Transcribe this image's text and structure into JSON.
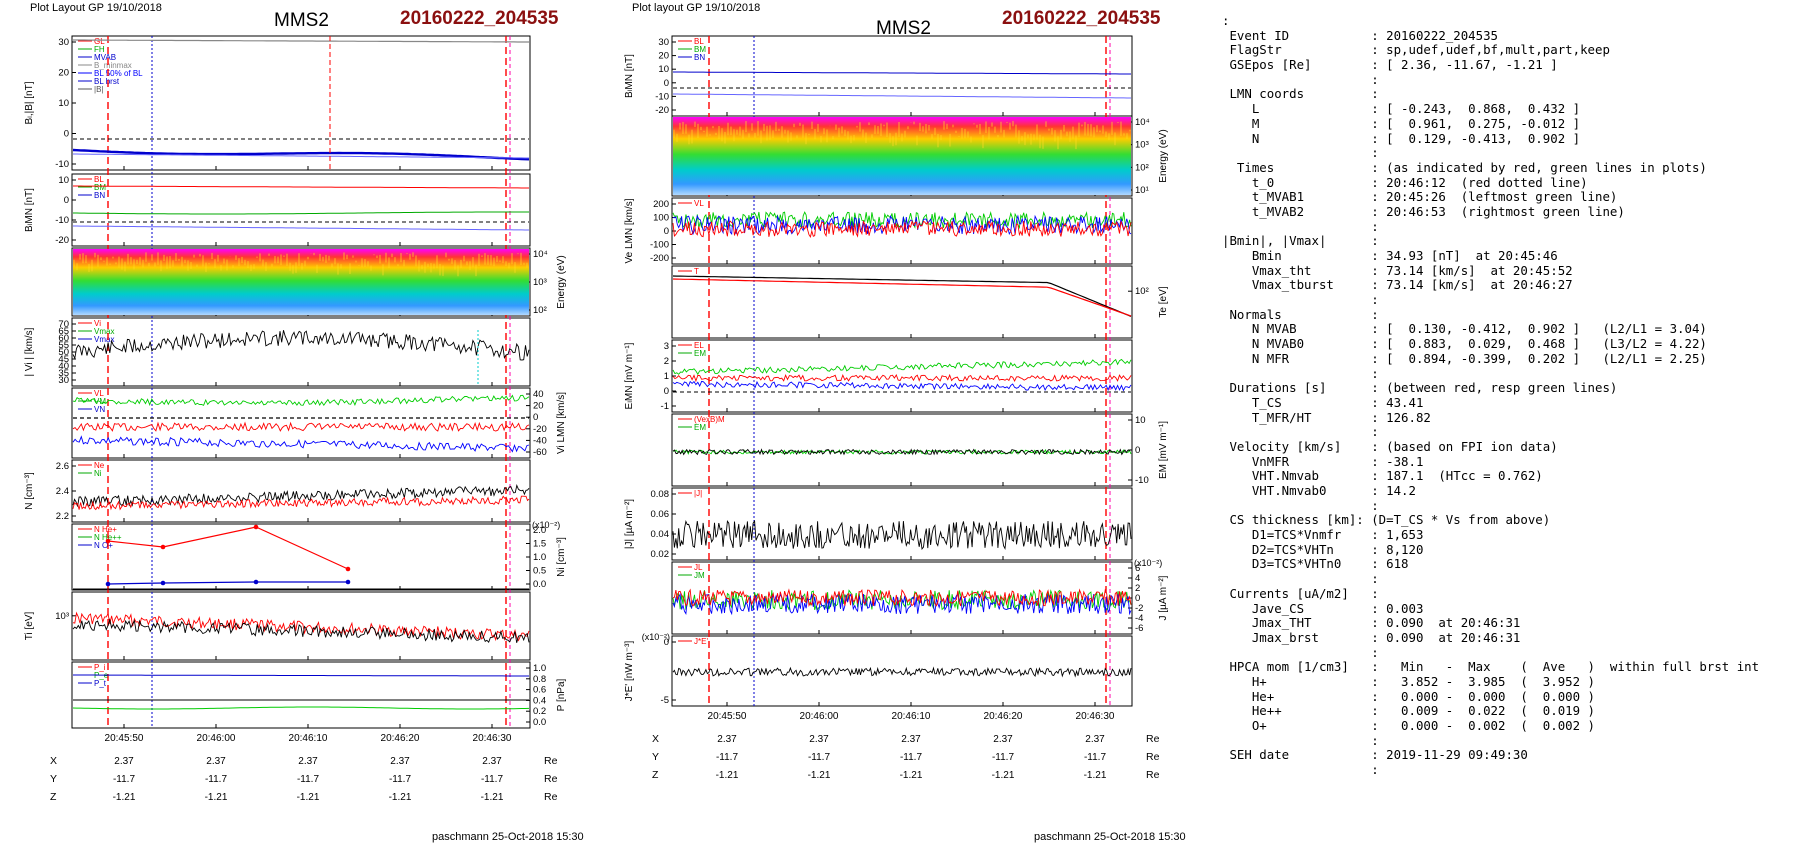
{
  "left": {
    "header": "Plot Layout GP 19/10/2018",
    "spacecraft": "MMS2",
    "event": "20160222_204535",
    "footer": "paschmann 25-Oct-2018 15:30",
    "time_ticks": [
      "20:45:50",
      "20:46:00",
      "20:46:10",
      "20:46:20",
      "20:46:30"
    ],
    "pos_rows": [
      {
        "label": "X",
        "values": [
          "2.37",
          "2.37",
          "2.37",
          "2.37",
          "2.37"
        ],
        "unit": "Re"
      },
      {
        "label": "Y",
        "values": [
          "-11.7",
          "-11.7",
          "-11.7",
          "-11.7",
          "-11.7"
        ],
        "unit": "Re"
      },
      {
        "label": "Z",
        "values": [
          "-1.21",
          "-1.21",
          "-1.21",
          "-1.21",
          "-1.21"
        ],
        "unit": "Re"
      }
    ],
    "panels": [
      {
        "ylabel": "Bₗ,|B| [nT]",
        "ticks": [
          "30",
          "20",
          "10",
          "0",
          "-10"
        ],
        "side": "left",
        "legend": [
          "GL",
          "FH",
          "MVAB",
          "B_minmax",
          "BL 50% of BL",
          "BL brst",
          "|B|"
        ]
      },
      {
        "ylabel": "BₗMN [nT]",
        "ticks": [
          "10",
          "0",
          "-10",
          "-20"
        ],
        "side": "left",
        "legend": [
          "BL",
          "BM",
          "BN"
        ]
      },
      {
        "ylabel": "Energy (eV)",
        "ticks": [
          "10⁴",
          "10³",
          "10²"
        ],
        "side": "right",
        "legend": []
      },
      {
        "ylabel": "| Vi | [km/s]",
        "ticks": [
          "70",
          "65",
          "60",
          "55",
          "50",
          "45",
          "40",
          "35",
          "30"
        ],
        "side": "left",
        "legend": [
          "Vi",
          "Vmax",
          "Vmax"
        ]
      },
      {
        "ylabel": "Vi LMN [km/s]",
        "ticks": [
          "40",
          "20",
          "0",
          "-20",
          "-40",
          "-60"
        ],
        "side": "right",
        "legend": [
          "VL",
          "VM",
          "VN"
        ]
      },
      {
        "ylabel": "N [cm⁻³]",
        "ticks": [
          "2.6",
          "2.4",
          "2.2"
        ],
        "side": "left",
        "legend": [
          "Ne",
          "Ni"
        ]
      },
      {
        "ylabel": "Ni [cm⁻³]",
        "ticks": [
          "2.0",
          "1.5",
          "1.0",
          "0.5",
          "0.0"
        ],
        "side": "right",
        "legend": [
          "N He+",
          "N He++",
          "N O+"
        ],
        "exp": "(x10⁻²)"
      },
      {
        "ylabel": "Ti [eV]",
        "ticks": [
          "10³"
        ],
        "side": "left",
        "legend": []
      },
      {
        "ylabel": "P [nPa]",
        "ticks": [
          "1.0",
          "0.8",
          "0.6",
          "0.4",
          "0.2",
          "0.0"
        ],
        "side": "right",
        "legend": [
          "P_i",
          "P_e",
          "P_t"
        ]
      }
    ]
  },
  "right": {
    "header": "Plot layout GP 19/10/2018",
    "spacecraft": "MMS2",
    "event": "20160222_204535",
    "footer": "paschmann 25-Oct-2018 15:30",
    "time_ticks": [
      "20:45:50",
      "20:46:00",
      "20:46:10",
      "20:46:20",
      "20:46:30"
    ],
    "pos_rows": [
      {
        "label": "X",
        "values": [
          "2.37",
          "2.37",
          "2.37",
          "2.37",
          "2.37"
        ],
        "unit": "Re"
      },
      {
        "label": "Y",
        "values": [
          "-11.7",
          "-11.7",
          "-11.7",
          "-11.7",
          "-11.7"
        ],
        "unit": "Re"
      },
      {
        "label": "Z",
        "values": [
          "-1.21",
          "-1.21",
          "-1.21",
          "-1.21",
          "-1.21"
        ],
        "unit": "Re"
      }
    ],
    "panels": [
      {
        "ylabel": "BₗMN [nT]",
        "ticks": [
          "30",
          "20",
          "10",
          "0",
          "-10",
          "-20"
        ],
        "side": "left",
        "legend": [
          "BL",
          "BM",
          "BN"
        ]
      },
      {
        "ylabel": "Energy (eV)",
        "ticks": [
          "10⁴",
          "10³",
          "10²",
          "10¹"
        ],
        "side": "right",
        "legend": []
      },
      {
        "ylabel": "Ve LMN [km/s]",
        "ticks": [
          "200",
          "100",
          "0",
          "-100",
          "-200"
        ],
        "side": "left",
        "legend": [
          "VL"
        ]
      },
      {
        "ylabel": "Te [eV]",
        "ticks": [
          "10²"
        ],
        "side": "right",
        "legend": [
          "T"
        ]
      },
      {
        "ylabel": "EₗMN [mV m⁻¹]",
        "ticks": [
          "3",
          "2",
          "1",
          "0",
          "-1"
        ],
        "side": "left",
        "legend": [
          "EL",
          "EM"
        ]
      },
      {
        "ylabel": "EM [mV m⁻¹]",
        "ticks": [
          "10",
          "0",
          "-10"
        ],
        "side": "right",
        "legend": [
          "(VexB)M",
          "EM"
        ]
      },
      {
        "ylabel": "|J| [µA m⁻²]",
        "ticks": [
          "0.08",
          "0.06",
          "0.04",
          "0.02"
        ],
        "side": "left",
        "legend": [
          "|J|"
        ]
      },
      {
        "ylabel": "J [µA m⁻²]",
        "ticks": [
          "6",
          "4",
          "2",
          "0",
          "-2",
          "-4",
          "-6"
        ],
        "side": "right",
        "legend": [
          "JL",
          "JM"
        ],
        "exp": "(x10⁻²)"
      },
      {
        "ylabel": "J*E' [nW m⁻³]",
        "ticks": [
          "0",
          "-5"
        ],
        "side": "left",
        "legend": [
          "J*E'"
        ],
        "exp": "(x10⁻²)"
      }
    ]
  },
  "info_lines": [
    ":",
    " Event ID           : 20160222_204535",
    " FlagStr            : sp,udef,udef,bf,mult,part,keep",
    " GSEpos [Re]        : [ 2.36, -11.67, -1.21 ]",
    "                    :",
    " LMN coords         :",
    "    L               : [ -0.243,  0.868,  0.432 ]",
    "    M               : [  0.961,  0.275, -0.012 ]",
    "    N               : [  0.129, -0.413,  0.902 ]",
    "                    :",
    "  Times             : (as indicated by red, green lines in plots)",
    "    t_0             : 20:46:12  (red dotted line)",
    "    t_MVAB1         : 20:45:26  (leftmost green line)",
    "    t_MVAB2         : 20:46:53  (rightmost green line)",
    "                    :",
    "|Bmin|, |Vmax|      :",
    "    Bmin            : 34.93 [nT]  at 20:45:46",
    "    Vmax_tht        : 73.14 [km/s]  at 20:45:52",
    "    Vmax_tburst     : 73.14 [km/s]  at 20:46:27",
    "                    :",
    " Normals            :",
    "    N MVAB          : [  0.130, -0.412,  0.902 ]   (L2/L1 = 3.04)",
    "    N MVAB0         : [  0.883,  0.029,  0.468 ]   (L3/L2 = 4.22)",
    "    N MFR           : [  0.894, -0.399,  0.202 ]   (L2/L1 = 2.25)",
    "                    :",
    " Durations [s]      : (between red, resp green lines)",
    "    T_CS            : 43.41",
    "    T_MFR/HT        : 126.82",
    "                    :",
    " Velocity [km/s]    : (based on FPI ion data)",
    "    VnMFR           : -38.1",
    "    VHT.Nmvab       : 187.1  (HTcc = 0.762)",
    "    VHT.Nmvab0      : 14.2",
    "                    :",
    " CS thickness [km]: (D=T_CS * Vs from above)",
    "    D1=TCS*Vnmfr    : 1,653",
    "    D2=TCS*VHTn     : 8,120",
    "    D3=TCS*VHTn0    : 618",
    "                    :",
    " Currents [uA/m2]   :",
    "    Jave_CS         : 0.003",
    "    Jmax_THT        : 0.090  at 20:46:31",
    "    Jmax_brst       : 0.090  at 20:46:31",
    "                    :",
    " HPCA mom [1/cm3]   :   Min   -  Max    (  Ave   )  within full brst int",
    "    H+              :   3.852 -  3.985  (  3.952 )",
    "    He+             :   0.000 -  0.000  (  0.000 )",
    "    He++            :   0.009 -  0.022  (  0.019 )",
    "    O+              :   0.000 -  0.002  (  0.002 )",
    "                    :",
    " SEH date           : 2019-11-29 09:49:30",
    "                    :"
  ],
  "chart_data": [
    {
      "type": "line",
      "title": "MMS2 20160222_204535",
      "xlabel": "",
      "x_ticks": [
        "20:45:50",
        "20:46:00",
        "20:46:10",
        "20:46:20",
        "20:46:30"
      ],
      "markers": {
        "red_dashed": [
          "20:45:46",
          "20:46:12",
          "20:46:31"
        ],
        "blue_dotted": [
          "20:45:52"
        ]
      },
      "panels": [
        {
          "name": "BL,|B|",
          "ylim": [
            -12,
            38
          ],
          "series": [
            {
              "name": "|B|",
              "color": "#888888",
              "values": [
                35,
                35.2,
                35.5,
                35.8,
                36,
                36.2,
                36.4,
                36.5
              ]
            },
            {
              "name": "BL",
              "color": "#0000cc",
              "values": [
                -5,
                -5.5,
                -6,
                -6.2,
                -6,
                -6.5,
                -7,
                -8
              ]
            }
          ]
        },
        {
          "name": "BLMN",
          "ylim": [
            -22,
            14
          ],
          "series": [
            {
              "name": "BL",
              "color": "#0000cc",
              "values": [
                -3,
                -3.5,
                -4,
                -4.2,
                -4,
                -4.5,
                -5,
                -6
              ]
            },
            {
              "name": "BM",
              "color": "#00aa00",
              "values": [
                5,
                4.8,
                4.6,
                4.5,
                4.5,
                4.4,
                4.3,
                4.2
              ]
            },
            {
              "name": "BN",
              "color": "#ff0000",
              "values": [
                0,
                0.5,
                1,
                1,
                0.8,
                1,
                1.2,
                1
              ]
            }
          ]
        },
        {
          "name": "Ni (HPCA)",
          "ylim": [
            0,
            2.2
          ],
          "series": [
            {
              "name": "N He++",
              "color": "#ff0000",
              "values": [
                1.8,
                1.6,
                2.0,
                0.9
              ]
            },
            {
              "name": "N O+",
              "color": "#0000cc",
              "values": [
                0.1,
                0.1,
                0.15,
                0.15
              ]
            }
          ]
        }
      ]
    },
    {
      "type": "line",
      "title": "MMS2 20160222_204535",
      "xlabel": "",
      "x_ticks": [
        "20:45:50",
        "20:46:00",
        "20:46:10",
        "20:46:20",
        "20:46:30"
      ],
      "markers": {
        "red_dashed": [
          "20:45:46",
          "20:46:31"
        ],
        "blue_dotted": [
          "20:45:52"
        ]
      },
      "panels": [
        {
          "name": "BLMN",
          "ylim": [
            -20,
            32
          ],
          "series": [
            {
              "name": "BL",
              "color": "#0000cc",
              "values": [
                -5,
                -5.5,
                -6,
                -6.2,
                -6,
                -6.5,
                -7,
                -8
              ]
            },
            {
              "name": "BM",
              "color": "#00aa00",
              "values": [
                5,
                4.8,
                4.6,
                4.5,
                4.5,
                4.4,
                4.3,
                4.2
              ]
            },
            {
              "name": "BN",
              "color": "#ff0000",
              "values": [
                0,
                0.5,
                1,
                1,
                0.8,
                1,
                1.2,
                1
              ]
            }
          ]
        },
        {
          "name": "Te",
          "ylim": [
            0,
            1
          ],
          "series": [
            {
              "name": "T",
              "color": "#000000",
              "values": [
                0.9,
                0.88,
                0.85,
                0.8,
                0.82,
                0.75,
                0.6,
                0.2
              ]
            }
          ]
        }
      ]
    }
  ]
}
